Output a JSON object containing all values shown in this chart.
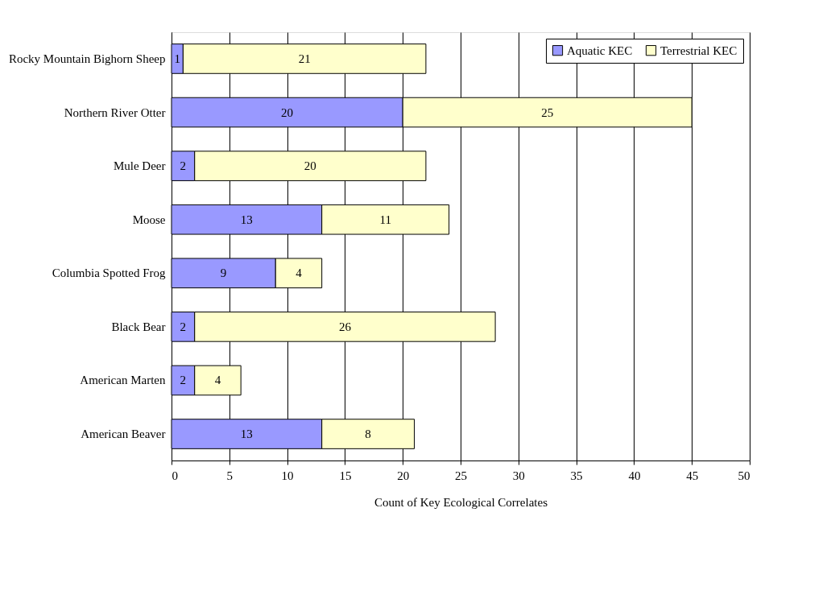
{
  "chart_data": {
    "type": "bar",
    "orientation": "horizontal",
    "stacked": true,
    "categories": [
      "Rocky Mountain Bighorn Sheep",
      "Northern River Otter",
      "Mule Deer",
      "Moose",
      "Columbia Spotted Frog",
      "Black Bear",
      "American Marten",
      "American Beaver"
    ],
    "series": [
      {
        "name": "Aquatic KEC",
        "color": "#9999ff",
        "values": [
          1,
          20,
          2,
          13,
          9,
          2,
          2,
          13
        ]
      },
      {
        "name": "Terrestrial KEC",
        "color": "#ffffcc",
        "values": [
          21,
          25,
          20,
          11,
          4,
          26,
          4,
          8
        ]
      }
    ],
    "xlabel": "Count of Key Ecological Correlates",
    "xlim": [
      0,
      50
    ],
    "xticks": [
      0,
      5,
      10,
      15,
      20,
      25,
      30,
      35,
      40,
      45,
      50
    ],
    "grid": "x",
    "legend": "top right",
    "data_labels": true
  }
}
